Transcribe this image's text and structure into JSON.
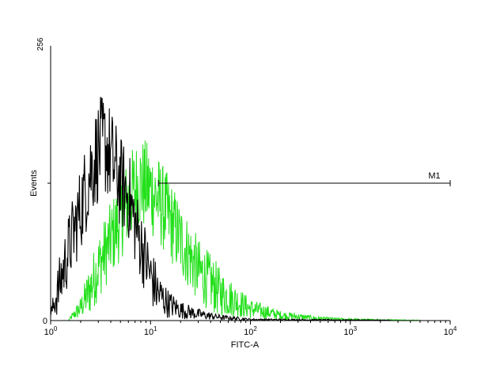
{
  "chart_data": {
    "type": "line",
    "title": "",
    "xlabel": "FITC-A",
    "ylabel": "Events",
    "x_scale": "log",
    "xlim": [
      1,
      10000
    ],
    "ylim": [
      0,
      256
    ],
    "x_ticks": [
      {
        "value": 1,
        "base": "10",
        "exp": "0"
      },
      {
        "value": 10,
        "base": "10",
        "exp": "1"
      },
      {
        "value": 100,
        "base": "10",
        "exp": "2"
      },
      {
        "value": 1000,
        "base": "10",
        "exp": "3"
      },
      {
        "value": 10000,
        "base": "10",
        "exp": "4"
      }
    ],
    "y_tick_labels": [
      "0",
      "256"
    ],
    "y_mid_tick": 128,
    "grid": false,
    "legend": false,
    "marker": {
      "label": "M1",
      "x_start": 12,
      "x_end": 10000,
      "y": 128
    },
    "series": [
      {
        "color": "#000000",
        "x": [
          1,
          1.2,
          1.5,
          2,
          2.5,
          3,
          3.5,
          4,
          5,
          6,
          7,
          8,
          10,
          12,
          15,
          20,
          30,
          50,
          100,
          10000
        ],
        "values": [
          5,
          30,
          65,
          105,
          140,
          158,
          165,
          152,
          128,
          118,
          90,
          72,
          42,
          25,
          16,
          10,
          6,
          3,
          1,
          0
        ]
      },
      {
        "color": "#22e01a",
        "x": [
          1.5,
          2,
          2.5,
          3,
          4,
          5,
          6,
          7,
          8,
          10,
          12,
          15,
          20,
          30,
          50,
          100,
          200,
          500,
          1000,
          10000
        ],
        "values": [
          0,
          12,
          30,
          50,
          75,
          95,
          112,
          123,
          128,
          122,
          112,
          97,
          75,
          47,
          26,
          11,
          5,
          2,
          1,
          0
        ]
      }
    ]
  }
}
